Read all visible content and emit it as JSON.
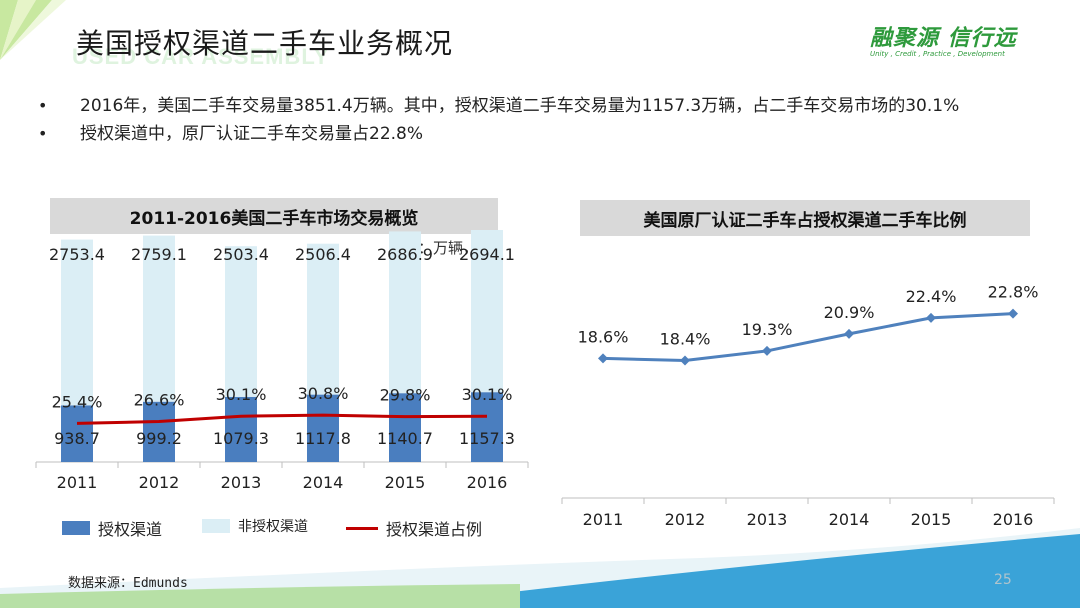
{
  "slide": {
    "title": "美国授权渠道二手车业务概况",
    "title_watermark": "USED CAR ASSEMBLY",
    "logo_main": "融聚源 信行远",
    "logo_sub": "Unity , Credit , Practice , Development",
    "bullets": [
      "2016年，美国二手车交易量3851.4万辆。其中，授权渠道二手车交易量为1157.3万辆，占二手车交易市场的30.1%",
      "授权渠道中，原厂认证二手车交易量占22.8%"
    ],
    "source": "数据来源：Edmunds",
    "page_number": "25",
    "colors": {
      "authorized": "#4a7ebf",
      "non_authorized": "#dbeef5",
      "ratio_line": "#c00000",
      "cpo_line": "#4f81bd"
    }
  },
  "chart_data": [
    {
      "type": "bar",
      "stacked": true,
      "title": "2011-2016美国二手车市场交易概览",
      "unit_label": "单位：万辆，%",
      "categories": [
        "2011",
        "2012",
        "2013",
        "2014",
        "2015",
        "2016"
      ],
      "series": [
        {
          "name": "授权渠道",
          "values": [
            938.7,
            999.2,
            1079.3,
            1117.8,
            1140.7,
            1157.3
          ]
        },
        {
          "name": "非授权渠道",
          "values": [
            2753.4,
            2759.1,
            2503.4,
            2506.4,
            2686.9,
            2694.1
          ]
        }
      ],
      "line_series": {
        "name": "授权渠道占例",
        "values": [
          25.4,
          26.6,
          30.1,
          30.8,
          29.8,
          30.1
        ],
        "labels": [
          "25.4%",
          "26.6%",
          "30.1%",
          "30.8%",
          "29.8%",
          "30.1%"
        ]
      },
      "authorized_labels": [
        "938.7",
        "999.2",
        "1079.3",
        "1117.8",
        "1140.7",
        "1157.3"
      ],
      "non_authorized_labels": [
        "2753.4",
        "2759.1",
        "2503.4",
        "2506.4",
        "2686.9",
        "2694.1"
      ],
      "legend": [
        "授权渠道",
        "非授权渠道",
        "授权渠道占例"
      ],
      "legend_position": "bottom"
    },
    {
      "type": "line",
      "title": "美国原厂认证二手车占授权渠道二手车比例",
      "categories": [
        "2011",
        "2012",
        "2013",
        "2014",
        "2015",
        "2016"
      ],
      "values": [
        18.6,
        18.4,
        19.3,
        20.9,
        22.4,
        22.8
      ],
      "labels": [
        "18.6%",
        "18.4%",
        "19.3%",
        "20.9%",
        "22.4%",
        "22.8%"
      ]
    }
  ]
}
